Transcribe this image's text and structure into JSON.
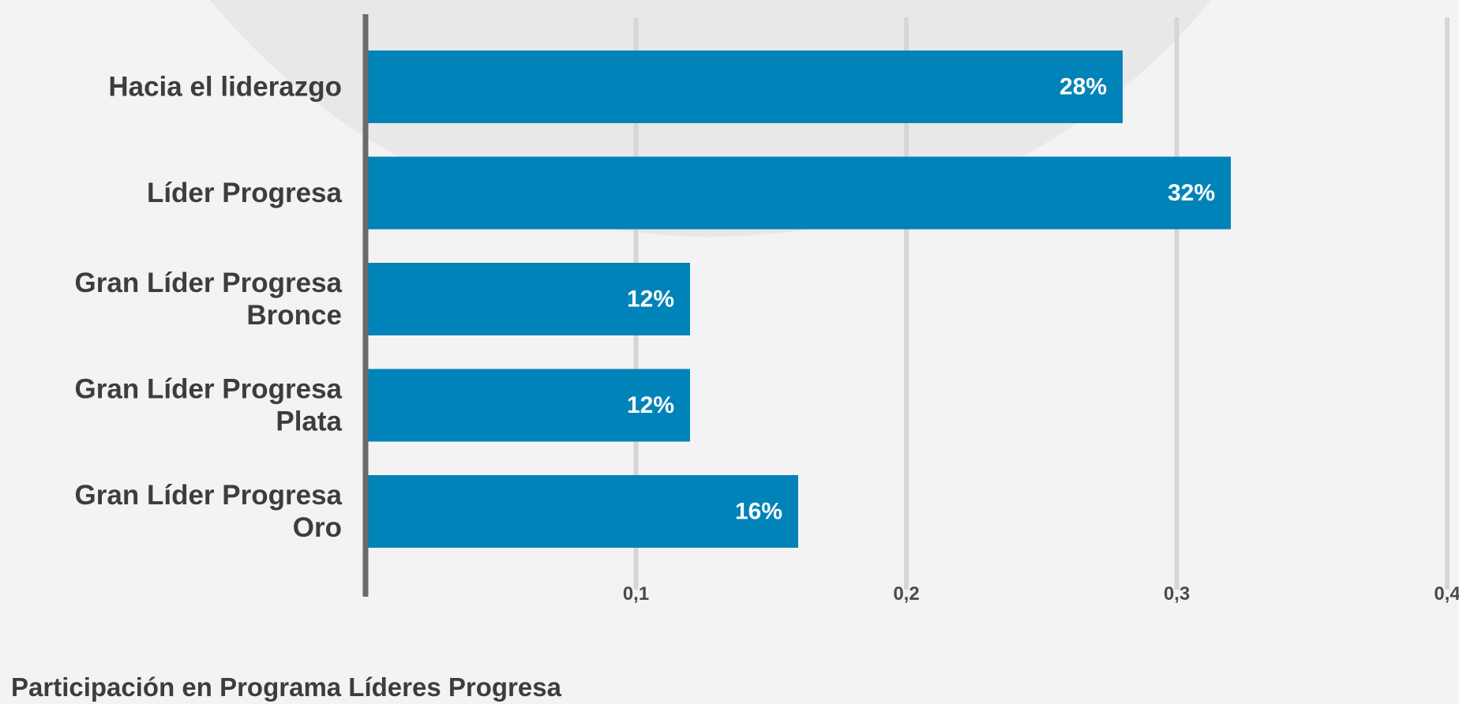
{
  "chart_data": {
    "type": "bar",
    "orientation": "horizontal",
    "categories": [
      [
        "Hacia el liderazgo"
      ],
      [
        "Líder Progresa"
      ],
      [
        "Gran Líder Progresa",
        "Bronce"
      ],
      [
        "Gran Líder Progresa",
        "Plata"
      ],
      [
        "Gran Líder Progresa",
        "Oro"
      ]
    ],
    "values": [
      0.28,
      0.32,
      0.12,
      0.12,
      0.16
    ],
    "data_labels": [
      "28%",
      "32%",
      "12%",
      "12%",
      "16%"
    ],
    "x_ticks": [
      0.1,
      0.2,
      0.3,
      0.4
    ],
    "x_tick_labels": [
      "0,1",
      "0,2",
      "0,3",
      "0,4"
    ],
    "xlim": [
      0,
      0.4
    ],
    "grid": true,
    "title": "Participación en Programa Líderes Progresa",
    "colors": {
      "bar": "#0083b8",
      "gridline": "#d6d6d6",
      "axis": "#6b6b6b",
      "background": "#f3f3f3",
      "background_shape": "#e8e8e8"
    }
  }
}
